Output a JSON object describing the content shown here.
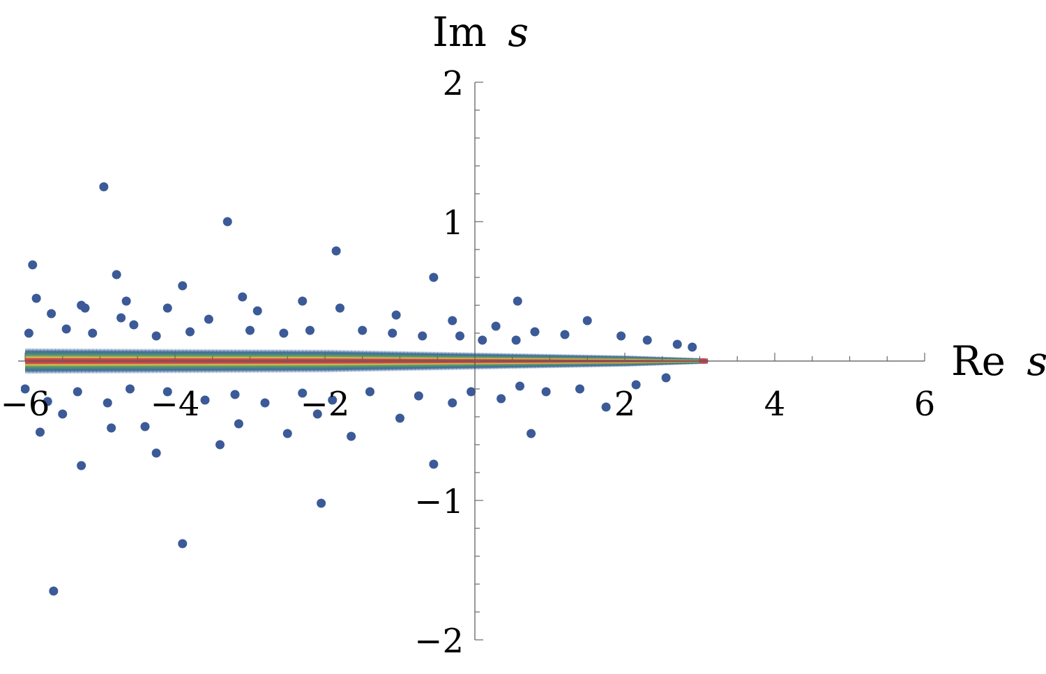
{
  "chart_data": {
    "type": "scatter",
    "xlabel": "Re s",
    "ylabel": "Im s",
    "xlabel_parts": {
      "prefix": "Re",
      "var": "s"
    },
    "ylabel_parts": {
      "prefix": "Im",
      "var": "s"
    },
    "xlim": [
      -6,
      6
    ],
    "ylim": [
      -2,
      2
    ],
    "x_ticks": [
      {
        "value": -6,
        "label": "−6"
      },
      {
        "value": -4,
        "label": "−4"
      },
      {
        "value": -2,
        "label": "−2"
      },
      {
        "value": 2,
        "label": "2"
      },
      {
        "value": 4,
        "label": "4"
      },
      {
        "value": 6,
        "label": "6"
      }
    ],
    "y_ticks": [
      {
        "value": 2,
        "label": "2"
      },
      {
        "value": 1,
        "label": "1"
      },
      {
        "value": -1,
        "label": "−1"
      },
      {
        "value": -2,
        "label": "−2"
      }
    ],
    "grid": false,
    "colors": {
      "point": "#3b5a97",
      "density_low": "#4a7fa0",
      "density_mid": "#5c9a62",
      "density_high": "#e2c44f",
      "density_max": "#c8464a"
    },
    "density_band": {
      "description": "dense cluster of points along the real axis",
      "x_range": [
        -6,
        3.05
      ],
      "half_width_at_x": [
        {
          "x": -6,
          "im": 0.09
        },
        {
          "x": -2,
          "im": 0.08
        },
        {
          "x": 0,
          "im": 0.06
        },
        {
          "x": 2,
          "im": 0.04
        },
        {
          "x": 3.05,
          "im": 0.02
        }
      ]
    },
    "outliers": [
      [
        -5.62,
        -1.65
      ],
      [
        -3.9,
        -1.31
      ],
      [
        -2.05,
        -1.02
      ],
      [
        -0.55,
        -0.74
      ],
      [
        -5.25,
        -0.75
      ],
      [
        -4.25,
        -0.66
      ],
      [
        -3.4,
        -0.6
      ],
      [
        -1.65,
        -0.54
      ],
      [
        -5.8,
        -0.51
      ],
      [
        -4.85,
        -0.48
      ],
      [
        -2.5,
        -0.52
      ],
      [
        0.75,
        -0.52
      ],
      [
        -4.4,
        -0.47
      ],
      [
        -3.15,
        -0.45
      ],
      [
        -1.0,
        -0.41
      ],
      [
        1.75,
        -0.33
      ],
      [
        -5.5,
        -0.38
      ],
      [
        -2.1,
        -0.38
      ],
      [
        -5.2,
        0.38
      ],
      [
        -4.72,
        0.31
      ],
      [
        -4.95,
        1.25
      ],
      [
        -3.3,
        1.0
      ],
      [
        -1.85,
        0.79
      ],
      [
        -5.9,
        0.69
      ],
      [
        -4.78,
        0.62
      ],
      [
        -3.9,
        0.54
      ],
      [
        -0.55,
        0.6
      ],
      [
        -3.1,
        0.46
      ],
      [
        -5.85,
        0.45
      ],
      [
        -4.65,
        0.43
      ],
      [
        -2.3,
        0.43
      ],
      [
        0.57,
        0.43
      ],
      [
        -5.25,
        0.4
      ],
      [
        -4.1,
        0.38
      ],
      [
        -1.8,
        0.38
      ],
      [
        -2.9,
        0.36
      ],
      [
        -5.65,
        0.34
      ],
      [
        -0.3,
        0.29
      ],
      [
        1.5,
        0.29
      ],
      [
        -3.55,
        0.3
      ],
      [
        -1.05,
        0.33
      ],
      [
        -4.55,
        0.26
      ],
      [
        0.28,
        0.25
      ],
      [
        -5.45,
        0.23
      ],
      [
        -3.0,
        0.22
      ],
      [
        -2.2,
        0.22
      ],
      [
        -1.5,
        0.22
      ],
      [
        0.8,
        0.21
      ],
      [
        -5.95,
        0.2
      ],
      [
        -5.1,
        0.2
      ],
      [
        -3.8,
        0.21
      ],
      [
        -2.55,
        0.2
      ],
      [
        -1.1,
        0.2
      ],
      [
        1.2,
        0.19
      ],
      [
        1.95,
        0.18
      ],
      [
        -4.25,
        0.18
      ],
      [
        -0.7,
        0.18
      ],
      [
        -0.2,
        0.18
      ],
      [
        0.1,
        0.15
      ],
      [
        0.55,
        0.15
      ],
      [
        2.3,
        0.15
      ],
      [
        -5.7,
        -0.29
      ],
      [
        -4.9,
        -0.3
      ],
      [
        -3.6,
        -0.28
      ],
      [
        -2.8,
        -0.3
      ],
      [
        -1.9,
        -0.28
      ],
      [
        -0.3,
        -0.3
      ],
      [
        0.35,
        -0.27
      ],
      [
        -5.3,
        -0.22
      ],
      [
        -4.1,
        -0.22
      ],
      [
        -3.2,
        -0.24
      ],
      [
        -2.3,
        -0.23
      ],
      [
        -1.4,
        -0.22
      ],
      [
        -0.75,
        -0.25
      ],
      [
        0.95,
        -0.22
      ],
      [
        1.4,
        -0.2
      ],
      [
        2.15,
        -0.17
      ],
      [
        -4.6,
        -0.2
      ],
      [
        -0.05,
        -0.22
      ],
      [
        2.55,
        -0.12
      ],
      [
        2.9,
        0.1
      ],
      [
        2.7,
        0.12
      ],
      [
        0.6,
        -0.18
      ],
      [
        -6.0,
        -0.2
      ]
    ]
  }
}
